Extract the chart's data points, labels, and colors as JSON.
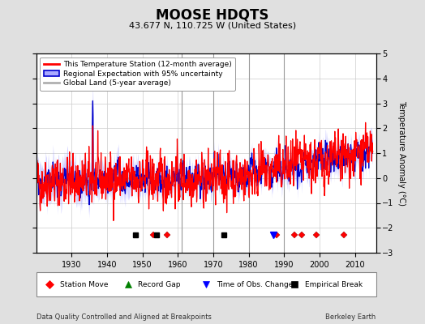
{
  "title": "MOOSE HDQTS",
  "subtitle": "43.677 N, 110.725 W (United States)",
  "ylabel": "Temperature Anomaly (°C)",
  "footer_left": "Data Quality Controlled and Aligned at Breakpoints",
  "footer_right": "Berkeley Earth",
  "ylim": [
    -3,
    5
  ],
  "yticks": [
    -3,
    -2,
    -1,
    0,
    1,
    2,
    3,
    4,
    5
  ],
  "xlim": [
    1920,
    2016
  ],
  "xticks": [
    1930,
    1940,
    1950,
    1960,
    1970,
    1980,
    1990,
    2000,
    2010
  ],
  "year_start": 1920,
  "year_end": 2015,
  "bg_color": "#e0e0e0",
  "plot_bg_color": "#ffffff",
  "grid_color": "#cccccc",
  "station_color": "#ff0000",
  "regional_color": "#0000cc",
  "regional_fill_color": "#aaaaff",
  "global_color": "#b0b0b0",
  "legend_station_label": "This Temperature Station (12-month average)",
  "legend_regional_label": "Regional Expectation with 95% uncertainty",
  "legend_global_label": "Global Land (5-year average)",
  "vertical_lines": [
    1961,
    1970,
    1980,
    1990
  ],
  "station_moves": [
    1953,
    1957,
    1988,
    1993,
    1995,
    1999,
    2007
  ],
  "empirical_breaks": [
    1948,
    1954,
    1973
  ],
  "obs_changes": [
    1987
  ],
  "marker_y": -2.3,
  "title_fontsize": 12,
  "subtitle_fontsize": 8,
  "axis_fontsize": 7,
  "ylabel_fontsize": 7,
  "footer_fontsize": 6,
  "legend_fontsize": 6.5
}
